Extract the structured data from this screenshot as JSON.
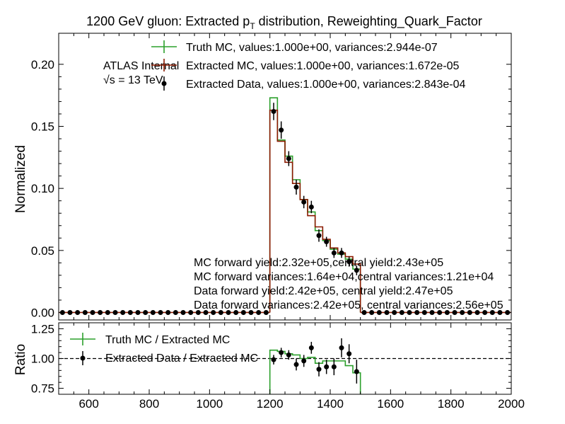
{
  "chart_data": [
    {
      "type": "line",
      "title_main": "1200 GeV gluon: Extracted p",
      "title_sub": "T",
      "title_tail": " distribution, Reweighting_Quark_Factor",
      "ylabel": "Normalized",
      "xlim": [
        500,
        2000
      ],
      "ylim": [
        -0.006,
        0.225
      ],
      "yticks": [
        0.0,
        0.05,
        0.1,
        0.15,
        0.2
      ],
      "ytick_labels": [
        "0.00",
        "0.05",
        "0.10",
        "0.15",
        "0.20"
      ],
      "atlas_label": "ATLAS Internal",
      "energy_label": "√s =  13 TeV",
      "bin_edges": [
        1200,
        1225,
        1250,
        1275,
        1300,
        1325,
        1350,
        1375,
        1400,
        1425,
        1450,
        1475,
        1500
      ],
      "series": [
        {
          "name": "Truth MC, values:1.000e+00, variances:2.944e-07",
          "style": "step",
          "color": "#2ca02c",
          "values": [
            0.173,
            0.139,
            0.126,
            0.107,
            0.091,
            0.081,
            0.066,
            0.058,
            0.051,
            0.047,
            0.043,
            0.035
          ]
        },
        {
          "name": "Extracted MC, values:1.000e+00, variances:1.672e-05",
          "style": "step",
          "color": "#8b1a00",
          "values": [
            0.163,
            0.138,
            0.121,
            0.104,
            0.091,
            0.078,
            0.069,
            0.059,
            0.052,
            0.048,
            0.045,
            0.039
          ]
        },
        {
          "name": "Extracted Data, values:1.000e+00, variances:2.843e-04",
          "style": "errorbar",
          "color": "#000000",
          "x": [
            512.5,
            537.5,
            562.5,
            587.5,
            612.5,
            637.5,
            662.5,
            687.5,
            712.5,
            737.5,
            762.5,
            787.5,
            812.5,
            837.5,
            862.5,
            887.5,
            912.5,
            937.5,
            962.5,
            987.5,
            1012.5,
            1037.5,
            1062.5,
            1087.5,
            1112.5,
            1137.5,
            1162.5,
            1187.5,
            1212.5,
            1237.5,
            1262.5,
            1287.5,
            1312.5,
            1337.5,
            1362.5,
            1387.5,
            1412.5,
            1437.5,
            1462.5,
            1487.5,
            1512.5,
            1537.5,
            1562.5,
            1587.5,
            1612.5,
            1637.5,
            1662.5,
            1687.5,
            1712.5,
            1737.5,
            1762.5,
            1787.5,
            1812.5,
            1837.5,
            1862.5,
            1887.5,
            1912.5,
            1937.5,
            1962.5,
            1987.5
          ],
          "values": [
            0,
            0,
            0,
            0,
            0,
            0,
            0,
            0,
            0,
            0,
            0,
            0,
            0,
            0,
            0,
            0,
            0,
            0,
            0,
            0,
            0,
            0,
            0,
            0,
            0,
            0,
            0,
            0,
            0.162,
            0.147,
            0.124,
            0.101,
            0.089,
            0.085,
            0.062,
            0.057,
            0.048,
            0.048,
            0.041,
            0.034,
            0,
            0,
            0,
            0,
            0,
            0,
            0,
            0,
            0,
            0,
            0,
            0,
            0,
            0,
            0,
            0,
            0,
            0,
            0,
            0
          ],
          "errors": [
            0,
            0,
            0,
            0,
            0,
            0,
            0,
            0,
            0,
            0,
            0,
            0,
            0,
            0,
            0,
            0,
            0,
            0,
            0,
            0,
            0,
            0,
            0,
            0,
            0,
            0,
            0,
            0,
            0.007,
            0.007,
            0.006,
            0.006,
            0.005,
            0.005,
            0.005,
            0.004,
            0.004,
            0.004,
            0.004,
            0.004,
            0,
            0,
            0,
            0,
            0,
            0,
            0,
            0,
            0,
            0,
            0,
            0,
            0,
            0,
            0,
            0,
            0,
            0,
            0,
            0
          ]
        }
      ],
      "annotations": [
        "MC forward yield:2.32e+05,central yield:2.43e+05",
        "MC forward variances:1.64e+04,central variances:1.21e+04",
        "Data forward yield:2.42e+05, central yield:2.47e+05",
        "Data forward variances:2.42e+05, central variances:2.56e+05"
      ]
    },
    {
      "type": "line",
      "ylabel": "Ratio",
      "xlim": [
        500,
        2000
      ],
      "ylim": [
        0.7,
        1.3
      ],
      "yticks": [
        0.75,
        1.0,
        1.25
      ],
      "ytick_labels": [
        "0.75",
        "1.00",
        "1.25"
      ],
      "xticks": [
        600,
        800,
        1000,
        1200,
        1400,
        1600,
        1800,
        2000
      ],
      "xtick_labels": [
        "600",
        "800",
        "1000",
        "1200",
        "1400",
        "1600",
        "1800",
        "2000"
      ],
      "reference_line": 1.0,
      "series": [
        {
          "name": "Truth MC / Extracted MC",
          "style": "step",
          "color": "#2ca02c",
          "bin_edges": [
            1200,
            1225,
            1250,
            1275,
            1300,
            1325,
            1350,
            1375,
            1400,
            1425,
            1450,
            1475,
            1500
          ],
          "values": [
            1.07,
            1.06,
            1.04,
            1.03,
            1.0,
            1.01,
            0.96,
            0.98,
            0.98,
            0.98,
            0.94,
            0.88
          ]
        },
        {
          "name": "Extracted Data / Extracted MC",
          "style": "errorbar",
          "color": "#000000",
          "x": [
            1212.5,
            1237.5,
            1262.5,
            1287.5,
            1312.5,
            1337.5,
            1362.5,
            1387.5,
            1412.5,
            1437.5,
            1462.5,
            1487.5
          ],
          "values": [
            0.99,
            1.05,
            1.03,
            0.95,
            0.98,
            1.09,
            0.91,
            0.93,
            0.93,
            1.09,
            1.04,
            0.89
          ],
          "errors": [
            0.04,
            0.04,
            0.04,
            0.05,
            0.05,
            0.05,
            0.06,
            0.06,
            0.07,
            0.08,
            0.08,
            0.1
          ]
        }
      ]
    }
  ]
}
